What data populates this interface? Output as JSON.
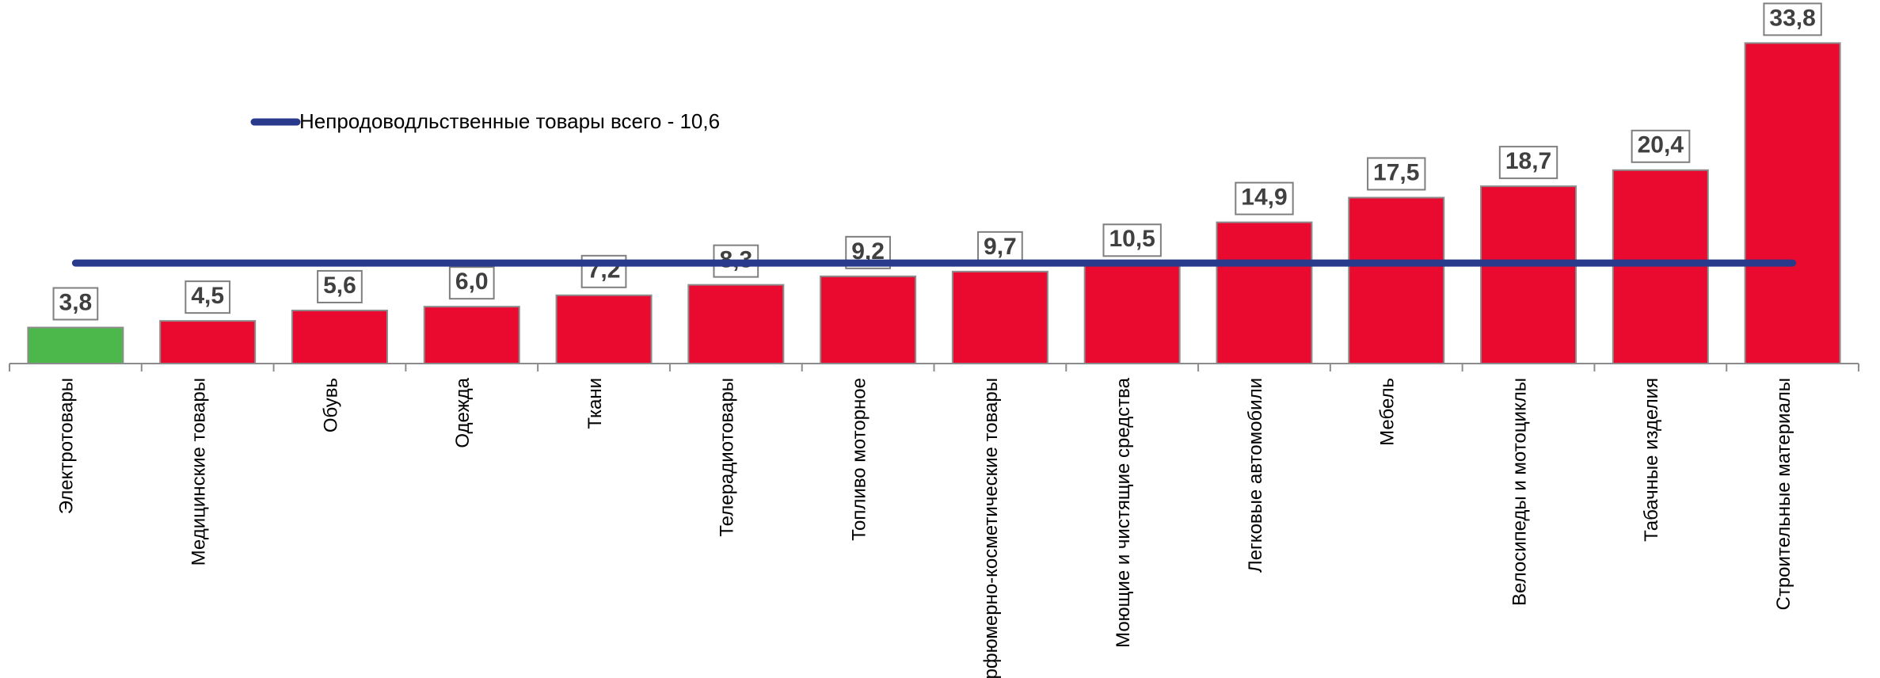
{
  "chart_data": {
    "type": "bar",
    "categories": [
      "Электротовары",
      "Медицинские товары",
      "Обувь",
      "Одежда",
      "Ткани",
      "Теле­радиотовары",
      "Топливо моторное",
      "Парфюмерно-косметические товары",
      "Моющие и чистящие средства",
      "Легковые автомобили",
      "Мебель",
      "Велосипеды и мотоциклы",
      "Табачные изделия",
      "Строительные материалы"
    ],
    "values": [
      3.8,
      4.5,
      5.6,
      6.0,
      7.2,
      8.3,
      9.2,
      9.7,
      10.5,
      14.9,
      17.5,
      18.7,
      20.4,
      33.8
    ],
    "value_labels": [
      "3,8",
      "4,5",
      "5,6",
      "6,0",
      "7,2",
      "8,3",
      "9,2",
      "9,7",
      "10,5",
      "14,9",
      "17,5",
      "18,7",
      "20,4",
      "33,8"
    ],
    "colors": [
      "#4cb84c",
      "#ea0a30",
      "#ea0a30",
      "#ea0a30",
      "#ea0a30",
      "#ea0a30",
      "#ea0a30",
      "#ea0a30",
      "#ea0a30",
      "#ea0a30",
      "#ea0a30",
      "#ea0a30",
      "#ea0a30",
      "#ea0a30"
    ],
    "reference": {
      "name": "Непродоводльственные товары всего - 10,6",
      "value": 10.6,
      "color": "#293a8c"
    },
    "ylim": [
      0,
      35
    ]
  }
}
